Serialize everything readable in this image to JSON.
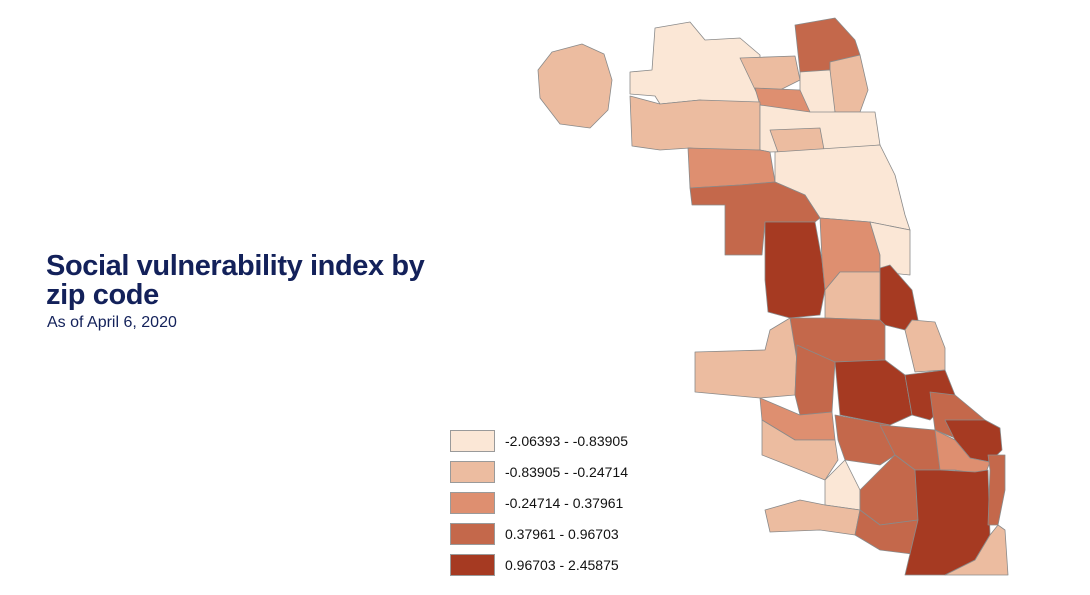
{
  "title": "Social vulnerability index by zip code",
  "subtitle": "As of April 6, 2020",
  "legend": [
    {
      "label": "-2.06393 - -0.83905",
      "color": "#fbe7d6"
    },
    {
      "label": "-0.83905 - -0.24714",
      "color": "#ecbca0"
    },
    {
      "label": "-0.24714 - 0.37961",
      "color": "#de8f70"
    },
    {
      "label": "0.37961 - 0.96703",
      "color": "#c4684b"
    },
    {
      "label": "0.96703 - 2.45875",
      "color": "#a63a22"
    }
  ]
}
